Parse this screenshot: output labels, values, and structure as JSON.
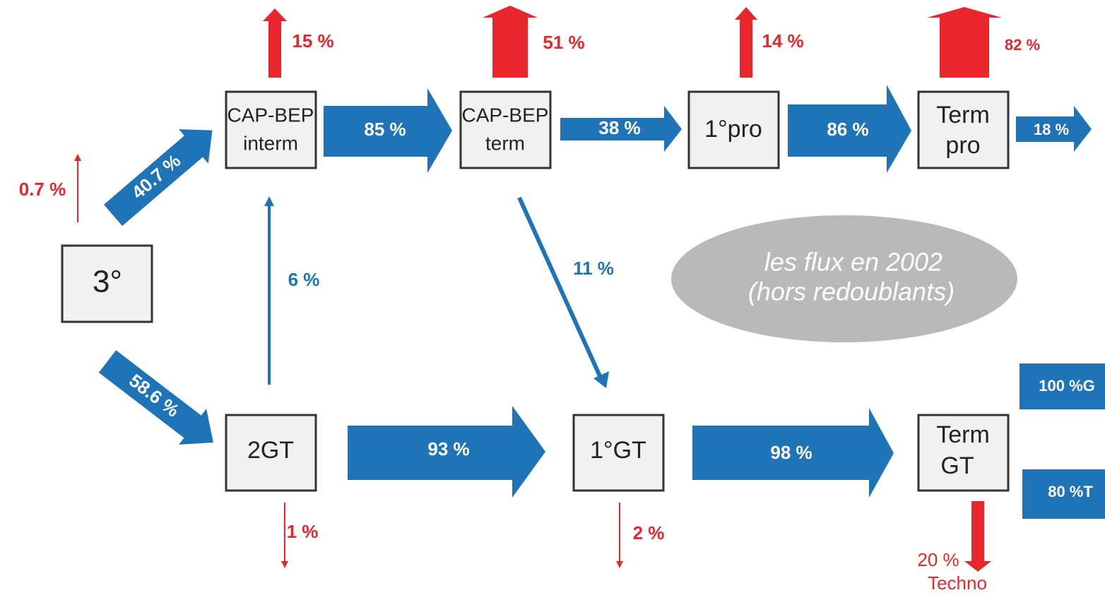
{
  "nodes": [
    {
      "lines": [
        "3°"
      ]
    },
    {
      "lines": [
        "CAP-BEP",
        "interm"
      ]
    },
    {
      "lines": [
        "CAP-BEP",
        "term"
      ]
    },
    {
      "lines": [
        "1°pro"
      ]
    },
    {
      "lines": [
        "Term",
        "pro"
      ]
    },
    {
      "lines": [
        "2GT"
      ]
    },
    {
      "lines": [
        "1°GT"
      ]
    },
    {
      "lines": [
        "Term",
        "GT"
      ]
    }
  ],
  "flows": {
    "cap_interm_exit": "15 %",
    "cap_term_exit": "51 %",
    "pro_exit": "14 %",
    "term_pro_exit": "82 %",
    "interm_to_term": "85 %",
    "term_to_pro": "38 %",
    "pro_to_term_pro": "86 %",
    "term_pro_out": "18 %",
    "third_exit": "0.7 %",
    "third_to_cap": "40.7 %",
    "third_to_2gt": "58.6 %",
    "gt_to_cap": "6 %",
    "cap_term_to_1gt": "11 %",
    "gt_to_1gt": "93 %",
    "first_gt_to_term": "98 %",
    "term_gt_g": "100 %G",
    "term_gt_t": "80 %T",
    "gt_exit": "1 %",
    "first_gt_exit": "2 %",
    "term_gt_exit": "20 %",
    "term_gt_exit_note": "Techno"
  },
  "note": {
    "lines": [
      "les flux en 2002",
      "(hors redoublants)"
    ]
  }
}
